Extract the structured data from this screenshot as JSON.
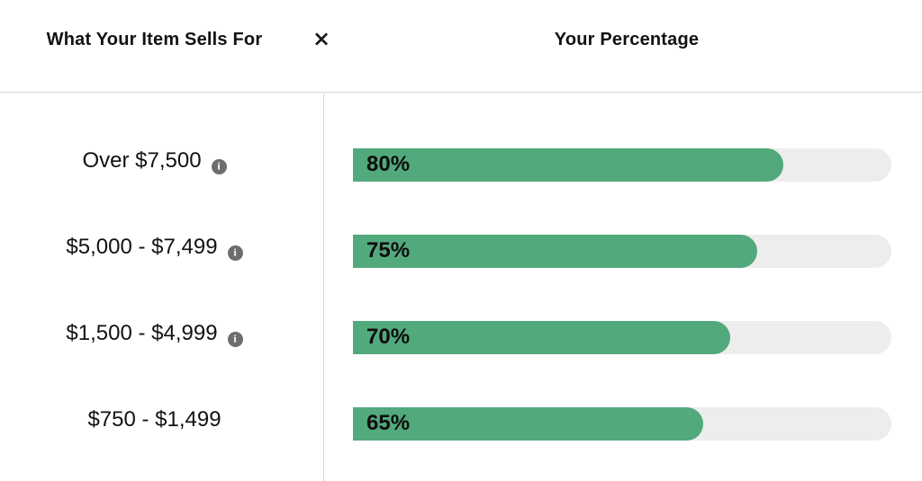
{
  "header": {
    "left_title": "What Your Item Sells For",
    "right_title": "Your Percentage"
  },
  "close_icon_glyph": "×",
  "info_icon_glyph": "i",
  "rows": [
    {
      "label": "Over $7,500",
      "has_info": true,
      "percent": 80,
      "percent_label": "80%"
    },
    {
      "label": "$5,000 - $7,499",
      "has_info": true,
      "percent": 75,
      "percent_label": "75%"
    },
    {
      "label": "$1,500 - $4,999",
      "has_info": true,
      "percent": 70,
      "percent_label": "70%"
    },
    {
      "label": "$750 - $1,499",
      "has_info": false,
      "percent": 65,
      "percent_label": "65%"
    }
  ],
  "colors": {
    "bar_fill": "#52a97c",
    "bar_track": "#ededed",
    "divider": "#d8d8d8",
    "info_icon_bg": "#6d6d6d",
    "text": "#121212"
  },
  "chart_data": {
    "type": "bar",
    "orientation": "horizontal",
    "categories": [
      "Over $7,500",
      "$5,000 - $7,499",
      "$1,500 - $4,999",
      "$750 - $1,499"
    ],
    "values": [
      80,
      75,
      70,
      65
    ],
    "value_labels": [
      "80%",
      "75%",
      "70%",
      "65%"
    ],
    "category_axis_label": "What Your Item Sells For",
    "value_axis_label": "Your Percentage",
    "value_range": [
      0,
      100
    ],
    "grid": false,
    "legend": false,
    "bar_color": "#52a97c",
    "track_color": "#ededed"
  }
}
